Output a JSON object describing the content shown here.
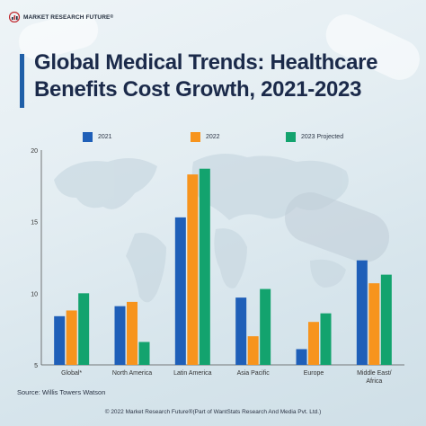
{
  "brand": {
    "name": "MARKET RESEARCH FUTURE",
    "mark": "®"
  },
  "chart_data": {
    "type": "bar",
    "title": "Global Medical Trends: Healthcare Benefits Cost Growth, 2021-2023",
    "categories": [
      "Global*",
      "North America",
      "Latin America",
      "Asia Pacific",
      "Europe",
      "Middle East/\nAfrica"
    ],
    "series": [
      {
        "name": "2021",
        "color": "#1f5fb8",
        "values": [
          8.4,
          9.1,
          15.3,
          9.7,
          6.1,
          12.3
        ]
      },
      {
        "name": "2022",
        "color": "#f7941d",
        "values": [
          8.8,
          9.4,
          18.3,
          7.0,
          8.0,
          10.7
        ]
      },
      {
        "name": "2023 Projected",
        "color": "#13a36e",
        "values": [
          10.0,
          6.6,
          18.7,
          10.3,
          8.6,
          11.3
        ]
      }
    ],
    "ylim": [
      5,
      20
    ],
    "yticks": [
      "5",
      "10",
      "15",
      "20"
    ],
    "grid": false,
    "legend_position": "top"
  },
  "source": "Source: Willis Towers Watson",
  "footer": "© 2022 Market Research Future®(Part of WantStats Research And Media Pvt. Ltd.)"
}
